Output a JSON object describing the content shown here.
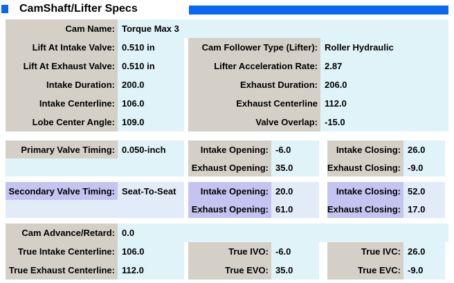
{
  "header": {
    "title": "CamShaft/Lifter Specs"
  },
  "colors": {
    "accent_blue": "#0968f2",
    "label_gray": "#d4d0c8",
    "label_lavender": "#c5c4f0",
    "value_cyan": "#dff3f8",
    "value_cyan_secondary": "#e2ecf9"
  },
  "s1": {
    "rows": [
      {
        "label": "Cam Name:",
        "value": "Torque Max 3"
      },
      {
        "label": "Lift At Intake Valve:",
        "value": "0.510 in",
        "label2": "Cam Follower Type (Lifter):",
        "value2": "Roller Hydraulic"
      },
      {
        "label": "Lift At Exhaust Valve:",
        "value": "0.510 in",
        "label2": "Lifter Acceleration Rate:",
        "value2": "2.87"
      },
      {
        "label": "Intake Duration:",
        "value": "200.0",
        "label2": "Exhaust Duration:",
        "value2": "206.0"
      },
      {
        "label": "Intake Centerline:",
        "value": "106.0",
        "label2": "Exhaust Centerline",
        "value2": "112.0"
      },
      {
        "label": "Lobe Center Angle:",
        "value": "109.0",
        "label2": "Valve Overlap:",
        "value2": "-15.0"
      }
    ]
  },
  "s2": {
    "mode_label": "Primary Valve Timing:",
    "mode_value": "0.050-inch",
    "io_label": "Intake Opening:",
    "io_value": "-6.0",
    "ic_label": "Intake Closing:",
    "ic_value": "26.0",
    "eo_label": "Exhaust Opening:",
    "eo_value": "35.0",
    "ec_label": "Exhaust Closing:",
    "ec_value": "-9.0"
  },
  "s3": {
    "mode_label": "Secondary Valve Timing:",
    "mode_value": "Seat-To-Seat",
    "io_label": "Intake Opening:",
    "io_value": "20.0",
    "ic_label": "Intake Closing:",
    "ic_value": "52.0",
    "eo_label": "Exhaust Opening:",
    "eo_value": "61.0",
    "ec_label": "Exhaust Closing:",
    "ec_value": "17.0"
  },
  "s4": {
    "adv_label": "Cam Advance/Retard:",
    "adv_value": "0.0",
    "tic_label": "True Intake Centerline:",
    "tic_value": "106.0",
    "ivo_label": "True IVO:",
    "ivo_value": "-6.0",
    "ivc_label": "True IVC:",
    "ivc_value": "26.0",
    "tec_label": "True Exhaust Centerline:",
    "tec_value": "112.0",
    "evo_label": "True EVO:",
    "evo_value": "35.0",
    "evc_label": "True EVC:",
    "evc_value": "-9.0"
  }
}
